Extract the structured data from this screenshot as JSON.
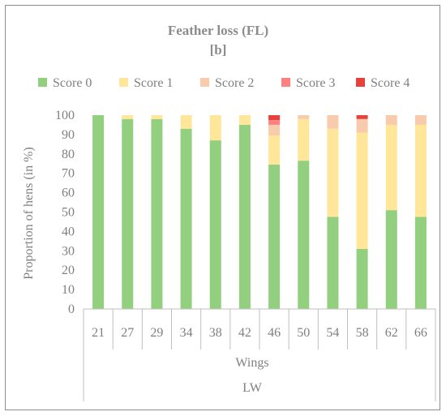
{
  "chart_data": {
    "type": "bar",
    "stacked": true,
    "title": "Feather loss (FL)",
    "subtitle": "[b]",
    "ylabel": "Proportion of hens (in %)",
    "ylim": [
      0,
      100
    ],
    "yticks": [
      0,
      10,
      20,
      30,
      40,
      50,
      60,
      70,
      80,
      90,
      100
    ],
    "legend_position": "top",
    "grid": false,
    "categories": [
      "21",
      "27",
      "29",
      "34",
      "38",
      "42",
      "46",
      "50",
      "54",
      "58",
      "62",
      "66"
    ],
    "group_label": "Wings",
    "outer_group_label": "LW",
    "series": [
      {
        "name": "Score 0",
        "color": "#92d07f",
        "values": [
          100,
          98,
          98,
          93,
          87,
          95,
          74.5,
          76.5,
          47.5,
          31,
          51,
          47.5
        ]
      },
      {
        "name": "Score 1",
        "color": "#ffe699",
        "values": [
          0,
          2,
          2,
          7,
          13,
          5,
          15,
          21.5,
          45.5,
          60,
          44,
          47.5
        ]
      },
      {
        "name": "Score 2",
        "color": "#f8cbad",
        "values": [
          0,
          0,
          0,
          0,
          0,
          0,
          5.5,
          2,
          7,
          7,
          5,
          5
        ]
      },
      {
        "name": "Score 3",
        "color": "#ff8080",
        "values": [
          0,
          0,
          0,
          0,
          0,
          0,
          2.5,
          0,
          0,
          0,
          0,
          0
        ]
      },
      {
        "name": "Score 4",
        "color": "#e8413c",
        "values": [
          0,
          0,
          0,
          0,
          0,
          0,
          2.5,
          0,
          0,
          2,
          0,
          0
        ]
      }
    ]
  }
}
